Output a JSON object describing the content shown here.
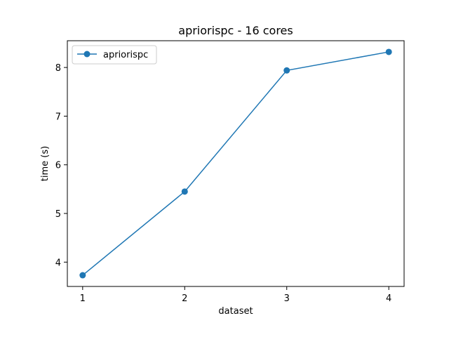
{
  "chart_data": {
    "type": "line",
    "title": "apriorispc - 16 cores",
    "xlabel": "dataset",
    "ylabel": "time (s)",
    "x": [
      1,
      2,
      3,
      4
    ],
    "series": [
      {
        "name": "apriorispc",
        "values": [
          3.73,
          5.45,
          7.94,
          8.32
        ],
        "color": "#1f77b4",
        "marker": "circle"
      }
    ],
    "xticks": [
      1,
      2,
      3,
      4
    ],
    "yticks": [
      4,
      5,
      6,
      7,
      8
    ],
    "xlim": [
      0.85,
      4.15
    ],
    "ylim": [
      3.5,
      8.55
    ],
    "grid": false,
    "legend_position": "top-left"
  }
}
